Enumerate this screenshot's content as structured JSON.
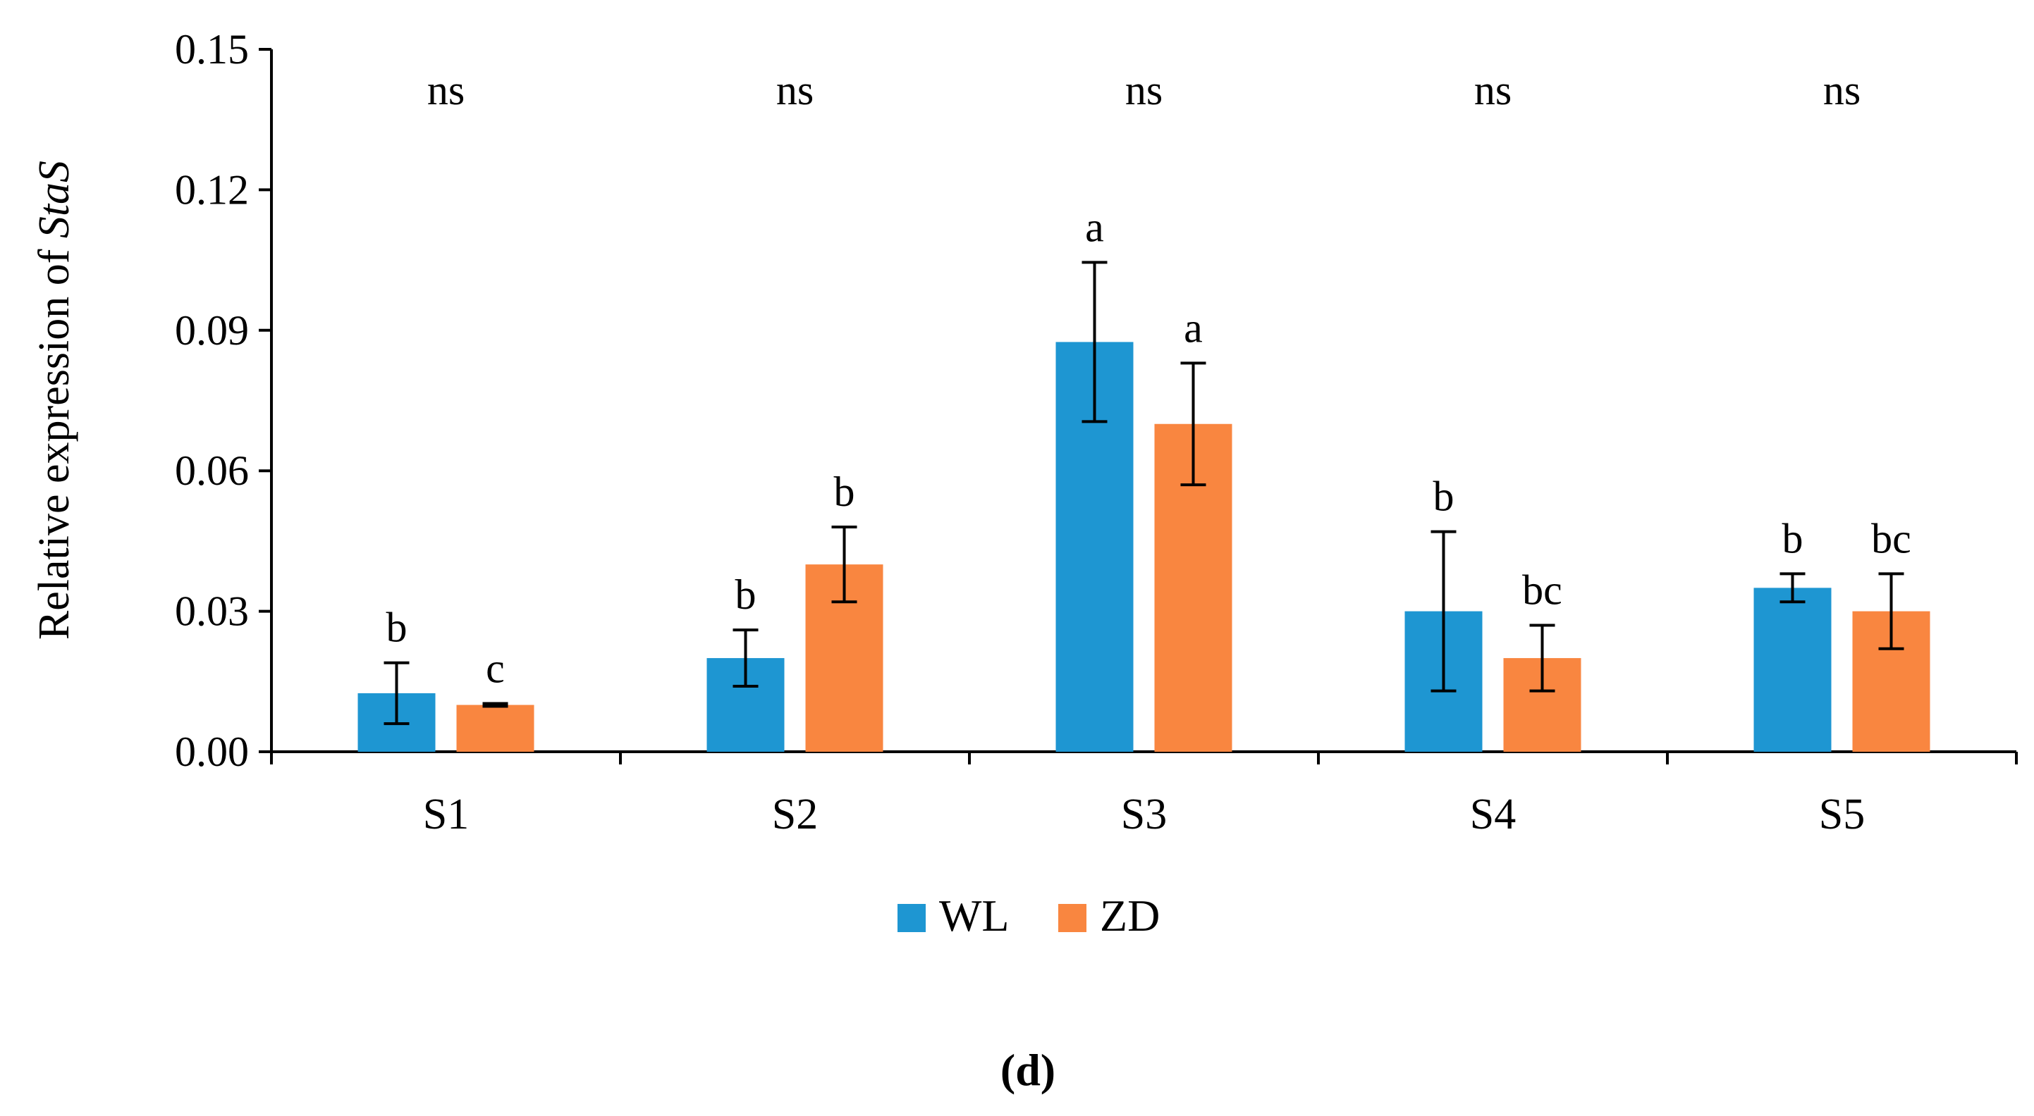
{
  "chart_data": {
    "type": "bar",
    "title": "",
    "panel_label": "d",
    "xlabel": "",
    "ylabel_prefix": "Relative expression of ",
    "ylabel_gene": "StaS",
    "ylim": [
      0,
      0.15
    ],
    "yticks": [
      "0.00",
      "0.03",
      "0.06",
      "0.09",
      "0.12",
      "0.15"
    ],
    "categories": [
      "S1",
      "S2",
      "S3",
      "S4",
      "S5"
    ],
    "group_annotations": [
      "ns",
      "ns",
      "ns",
      "ns",
      "ns"
    ],
    "series": [
      {
        "name": "WL",
        "color": "#1e96d2",
        "values": [
          0.0125,
          0.02,
          0.0875,
          0.03,
          0.035
        ],
        "errors": [
          0.0065,
          0.006,
          0.017,
          0.017,
          0.003
        ],
        "letters": [
          "b",
          "b",
          "a",
          "b",
          "b"
        ]
      },
      {
        "name": "ZD",
        "color": "#f98640",
        "values": [
          0.01,
          0.04,
          0.07,
          0.02,
          0.03
        ],
        "errors": [
          0.0003,
          0.008,
          0.013,
          0.007,
          0.008
        ],
        "letters": [
          "c",
          "b",
          "a",
          "bc",
          "bc"
        ]
      }
    ],
    "legend": {
      "position": "bottom-center",
      "entries": [
        "WL",
        "ZD"
      ]
    }
  }
}
